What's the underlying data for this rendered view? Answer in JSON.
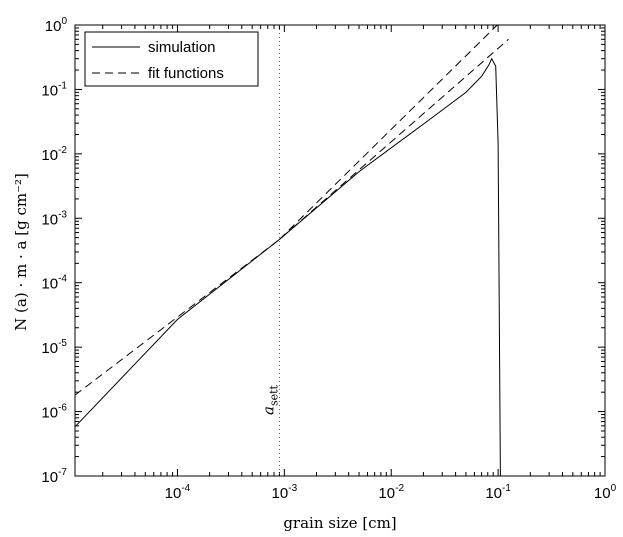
{
  "chart_data": {
    "type": "line",
    "title": "",
    "xlabel": "grain size [cm]",
    "ylabel": "N (a) · m · a [g cm⁻²]",
    "xscale": "log",
    "yscale": "log",
    "xlim": [
      1.1e-05,
      1
    ],
    "ylim": [
      1e-07,
      1
    ],
    "x_ticks": [
      {
        "base": "10",
        "exp": "-4",
        "value": 0.0001
      },
      {
        "base": "10",
        "exp": "-3",
        "value": 0.001
      },
      {
        "base": "10",
        "exp": "-2",
        "value": 0.01
      },
      {
        "base": "10",
        "exp": "-1",
        "value": 0.1
      },
      {
        "base": "10",
        "exp": "0",
        "value": 1
      }
    ],
    "y_ticks": [
      {
        "base": "10",
        "exp": "-7",
        "value": 1e-07
      },
      {
        "base": "10",
        "exp": "-6",
        "value": 1e-06
      },
      {
        "base": "10",
        "exp": "-5",
        "value": 1e-05
      },
      {
        "base": "10",
        "exp": "-4",
        "value": 0.0001
      },
      {
        "base": "10",
        "exp": "-3",
        "value": 0.001
      },
      {
        "base": "10",
        "exp": "-2",
        "value": 0.01
      },
      {
        "base": "10",
        "exp": "-1",
        "value": 0.1
      },
      {
        "base": "10",
        "exp": "0",
        "value": 1
      }
    ],
    "grid": false,
    "legend": {
      "position": "top-left",
      "entries": [
        {
          "label": "simulation",
          "style": "solid"
        },
        {
          "label": "fit functions",
          "style": "dashed"
        }
      ]
    },
    "series": [
      {
        "name": "simulation",
        "style": "solid",
        "color": "#000000",
        "x": [
          1.1e-05,
          0.0001,
          0.0009,
          0.005,
          0.02,
          0.05,
          0.07,
          0.082,
          0.087,
          0.095,
          0.1,
          0.105
        ],
        "y": [
          5.8e-07,
          2.7e-05,
          0.00047,
          0.0053,
          0.029,
          0.09,
          0.16,
          0.24,
          0.3,
          0.23,
          0.015,
          1e-07
        ]
      },
      {
        "name": "fit functions",
        "style": "dashed",
        "color": "#000000",
        "x": [
          1.1e-05,
          0.0009,
          0.125
        ],
        "y": [
          1.8e-06,
          0.00047,
          0.6
        ]
      },
      {
        "name": "fit functions",
        "style": "dashed",
        "color": "#000000",
        "x": [
          0.0009,
          0.098
        ],
        "y": [
          0.00047,
          1
        ]
      }
    ],
    "annotations": [
      {
        "text": "a",
        "subscript": "sett",
        "x": 0.0009,
        "line_style": "dotted"
      }
    ]
  }
}
